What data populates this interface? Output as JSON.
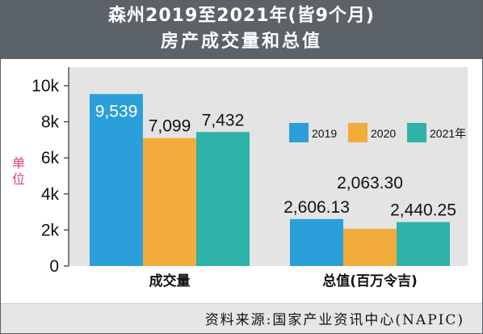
{
  "header": {
    "title_line1": "森州2019至2021年(皆9个月)",
    "title_line2": "房产成交量和总值"
  },
  "footer": {
    "source": "资料来源:国家产业资讯中心(NAPIC)"
  },
  "colors": {
    "header_bg": "#5c6368",
    "plot_bg": "#e4e4e4",
    "footer_bg": "#e6e6e6",
    "unit_label": "#e0406a"
  },
  "chart_data": {
    "type": "bar",
    "title": "森州2019至2021年(皆9个月) 房产成交量和总值",
    "ylabel": "单位",
    "ylim": [
      0,
      10000
    ],
    "yticks": [
      0,
      2000,
      4000,
      6000,
      8000,
      10000
    ],
    "ytick_labels": [
      "0",
      "2k",
      "4k",
      "6k",
      "8k",
      "10k"
    ],
    "categories": [
      "成交量",
      "总值(百万令吉)"
    ],
    "series": [
      {
        "name": "2019",
        "color": "#2b9fd9",
        "values": [
          9539,
          2606.13
        ],
        "labels": [
          "9,539",
          "2,606.13"
        ]
      },
      {
        "name": "2020",
        "color": "#f2ac3b",
        "values": [
          7099,
          2063.3
        ],
        "labels": [
          "7,099",
          "2,063.30"
        ]
      },
      {
        "name": "2021年",
        "color": "#2fb3a8",
        "values": [
          7432,
          2440.25
        ],
        "labels": [
          "7,432",
          "2,440.25"
        ]
      }
    ],
    "legend_position": "right, above second group",
    "grid": false
  }
}
